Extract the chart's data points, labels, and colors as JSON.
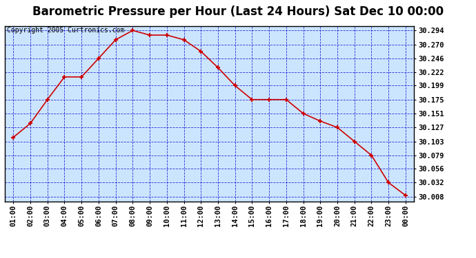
{
  "title": "Barometric Pressure per Hour (Last 24 Hours) Sat Dec 10 00:00",
  "copyright": "Copyright 2005 Curtronics.com",
  "x_labels": [
    "01:00",
    "02:00",
    "03:00",
    "04:00",
    "05:00",
    "06:00",
    "07:00",
    "08:00",
    "09:00",
    "10:00",
    "11:00",
    "12:00",
    "13:00",
    "14:00",
    "15:00",
    "16:00",
    "17:00",
    "18:00",
    "19:00",
    "20:00",
    "21:00",
    "22:00",
    "23:00",
    "00:00"
  ],
  "y_values": [
    30.11,
    30.134,
    30.175,
    30.214,
    30.214,
    30.246,
    30.278,
    30.294,
    30.286,
    30.286,
    30.278,
    30.258,
    30.23,
    30.199,
    30.175,
    30.175,
    30.175,
    30.151,
    30.138,
    30.127,
    30.103,
    30.079,
    30.032,
    30.01
  ],
  "yticks": [
    30.008,
    30.032,
    30.056,
    30.079,
    30.103,
    30.127,
    30.151,
    30.175,
    30.199,
    30.222,
    30.246,
    30.27,
    30.294
  ],
  "ylim_min": 30.0,
  "ylim_max": 30.302,
  "line_color": "#cc0000",
  "marker_color": "#cc0000",
  "plot_bg_color": "#cce5ff",
  "fig_bg_color": "#ffffff",
  "grid_color": "#0000cc",
  "border_color": "#000000",
  "title_fontsize": 12,
  "copyright_fontsize": 7,
  "tick_fontsize": 7.5
}
